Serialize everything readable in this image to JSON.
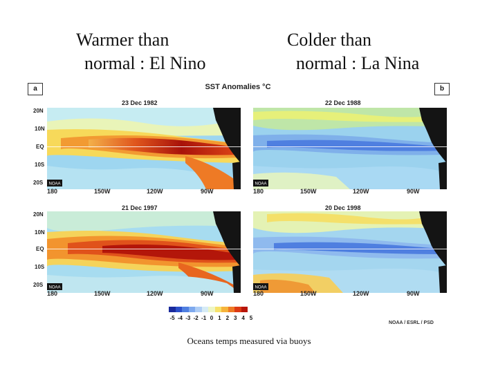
{
  "headings": {
    "left_line1": "Warmer than",
    "left_line2": "normal : El Nino",
    "right_line1": "Colder than",
    "right_line2": "normal : La Nina"
  },
  "figure": {
    "title": "SST Anomalies °C",
    "tag_a": "a",
    "tag_b": "b",
    "panels": [
      {
        "date": "23 Dec 1982",
        "phase": "warm"
      },
      {
        "date": "22 Dec 1988",
        "phase": "cold"
      },
      {
        "date": "21 Dec 1997",
        "phase": "warm"
      },
      {
        "date": "20 Dec 1998",
        "phase": "cold"
      }
    ],
    "lat_labels": [
      "20N",
      "10N",
      "EQ",
      "10S",
      "20S"
    ],
    "lon_labels": [
      "180",
      "150W",
      "120W",
      "90W"
    ],
    "colorbar_labels": [
      "-5",
      "-4",
      "-3",
      "-2",
      "-1",
      "0",
      "1",
      "2",
      "3",
      "4",
      "5"
    ],
    "colorbar_colors": [
      "#1a2a9c",
      "#2b4fc9",
      "#4f7fe0",
      "#7ea9ee",
      "#aecdf5",
      "#d6ebf5",
      "#eef6c4",
      "#f7e16a",
      "#f6b43c",
      "#ee7a25",
      "#dc3a14",
      "#b8160a"
    ],
    "credit": "NOAA / ESRL / PSD",
    "noaa_badge": "NOAA"
  },
  "caption": "Oceans temps measured via buoys"
}
